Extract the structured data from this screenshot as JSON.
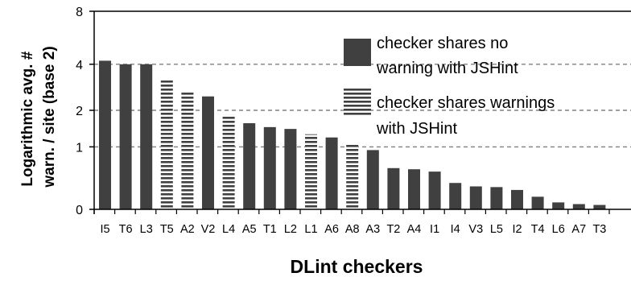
{
  "chart_data": {
    "type": "bar",
    "title": "",
    "xlabel": "DLint checkers",
    "ylabel": "Logarithmic avg. # warn. / site (base 2)",
    "ylabel_lines": [
      "Logarithmic avg. #",
      "warn. / site (base 2)"
    ],
    "ylim": [
      0,
      8
    ],
    "yticks": [
      {
        "value": 0,
        "label": "0"
      },
      {
        "value": 1,
        "label": "1"
      },
      {
        "value": 2,
        "label": "2"
      },
      {
        "value": 4,
        "label": "4"
      },
      {
        "value": 8,
        "label": "8"
      }
    ],
    "y_scale": "log2(1+x)",
    "grid": "dashed horizontal lines at ticks 1, 2, 4",
    "legend_position": "top-right",
    "categories": [
      "I5",
      "T6",
      "L3",
      "T5",
      "A2",
      "V2",
      "L4",
      "A5",
      "T1",
      "L2",
      "L1",
      "A6",
      "A8",
      "A3",
      "T2",
      "A4",
      "I1",
      "I4",
      "V3",
      "L5",
      "I2",
      "T4",
      "L6",
      "A7",
      "T3"
    ],
    "values": [
      4.2,
      4.0,
      4.0,
      3.2,
      2.7,
      2.5,
      1.85,
      1.6,
      1.49,
      1.44,
      1.3,
      1.22,
      1.07,
      0.93,
      0.58,
      0.56,
      0.52,
      0.34,
      0.29,
      0.28,
      0.24,
      0.15,
      0.08,
      0.06,
      0.05
    ],
    "bar_style": [
      "solid",
      "solid",
      "solid",
      "striped",
      "striped",
      "solid",
      "striped",
      "solid",
      "solid",
      "solid",
      "striped",
      "solid",
      "striped",
      "solid",
      "solid",
      "solid",
      "solid",
      "solid",
      "solid",
      "solid",
      "solid",
      "solid",
      "solid",
      "solid",
      "solid"
    ],
    "series": [
      {
        "name": "checker shares no warning with JSHint",
        "name_lines": [
          "checker shares no",
          "warning with JSHint"
        ],
        "style": "solid",
        "color": "#404040"
      },
      {
        "name": "checker shares warnings with JSHint",
        "name_lines": [
          "checker shares warnings",
          "with JSHint"
        ],
        "style": "striped",
        "color": "#404040"
      }
    ]
  },
  "colors": {
    "bar": "#404040",
    "stripe_bg": "#ffffff",
    "grid": "#808080",
    "axis": "#000000"
  }
}
